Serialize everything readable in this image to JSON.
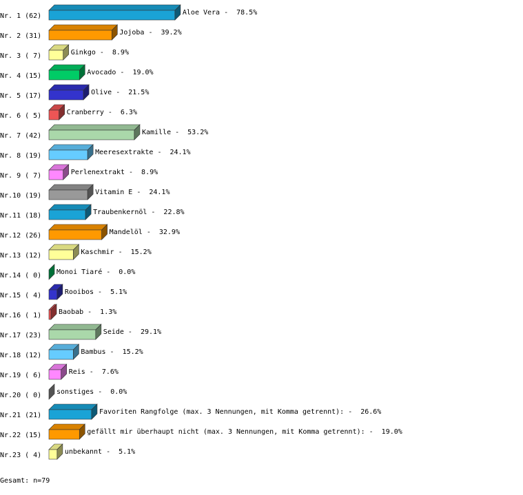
{
  "chart_data": {
    "type": "bar3d",
    "row_labels": [
      "Nr. 1 (62)",
      "Nr. 2 (31)",
      "Nr. 3 ( 7)",
      "Nr. 4 (15)",
      "Nr. 5 (17)",
      "Nr. 6 ( 5)",
      "Nr. 7 (42)",
      "Nr. 8 (19)",
      "Nr. 9 ( 7)",
      "Nr.10 (19)",
      "Nr.11 (18)",
      "Nr.12 (26)",
      "Nr.13 (12)",
      "Nr.14 ( 0)",
      "Nr.15 ( 4)",
      "Nr.16 ( 1)",
      "Nr.17 (23)",
      "Nr.18 (12)",
      "Nr.19 ( 6)",
      "Nr.20 ( 0)",
      "Nr.21 (21)",
      "Nr.22 (15)",
      "Nr.23 ( 4)"
    ],
    "categories": [
      "Aloe Vera",
      "Jojoba",
      "Ginkgo",
      "Avocado",
      "Olive",
      "Cranberry",
      "Kamille",
      "Meeresextrakte",
      "Perlenextrakt",
      "Vitamin E",
      "Traubenkernöl",
      "Mandelöl",
      "Kaschmir",
      "Monoi Tiaré",
      "Rooibos",
      "Baobab",
      "Seide",
      "Bambus",
      "Reis",
      "sonstiges",
      "Favoriten Rangfolge (max. 3 Nennungen, mit Komma getrennt):",
      "gefällt mir überhaupt nicht (max. 3 Nennungen, mit Komma getrennt):",
      "unbekannt"
    ],
    "separator": "-",
    "values": [
      78.5,
      39.2,
      8.9,
      19.0,
      21.5,
      6.3,
      53.2,
      24.1,
      8.9,
      24.1,
      22.8,
      32.9,
      15.2,
      0.0,
      5.1,
      1.3,
      29.1,
      15.2,
      7.6,
      0.0,
      26.6,
      19.0,
      5.1
    ],
    "value_labels": [
      "78.5%",
      "39.2%",
      "8.9%",
      "19.0%",
      "21.5%",
      "6.3%",
      "53.2%",
      "24.1%",
      "8.9%",
      "24.1%",
      "22.8%",
      "32.9%",
      "15.2%",
      "0.0%",
      "5.1%",
      "1.3%",
      "29.1%",
      "15.2%",
      "7.6%",
      "0.0%",
      "26.6%",
      "19.0%",
      "5.1%"
    ],
    "colors": [
      "#1aa3d6",
      "#ff9900",
      "#ffff99",
      "#00cc66",
      "#3333cc",
      "#ee5555",
      "#aad8aa",
      "#66ccff",
      "#ff88ff",
      "#999999",
      "#1aa3d6",
      "#ff9900",
      "#ffff99",
      "#00cc66",
      "#3333cc",
      "#ee5555",
      "#aad8aa",
      "#66ccff",
      "#ff88ff",
      "#999999",
      "#1aa3d6",
      "#ff9900",
      "#ffff99"
    ],
    "footer": "Gesamt: n=79"
  }
}
